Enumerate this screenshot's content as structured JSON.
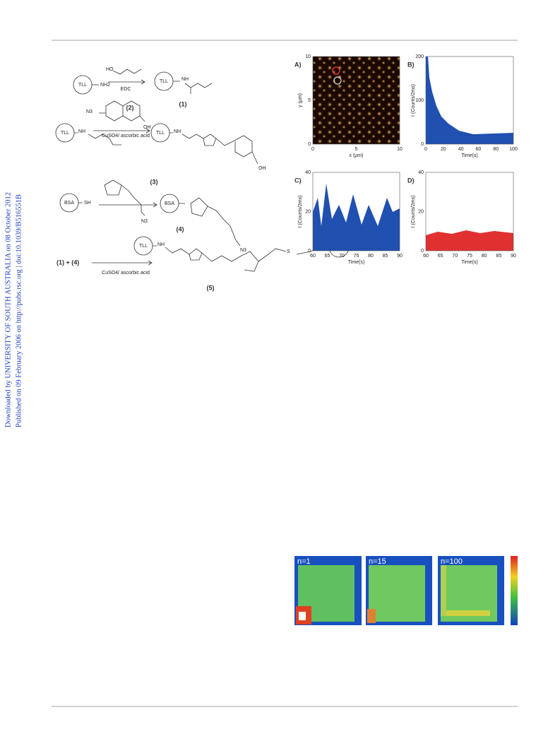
{
  "sidebar": {
    "downloaded": "Downloaded by UNIVERSITY OF SOUTH AUSTRALIA on 08 October 2012",
    "published": "Published on 09 February 2006 on http://pubs.rsc.org | doi:10.1039/B516551B"
  },
  "scheme": {
    "tll": "TLL",
    "nh2": "NH2",
    "nh": "NH",
    "ho": "HO",
    "edc": "EDC",
    "c1": "(1)",
    "c2": "(2)",
    "n3": "N3",
    "oh": "OH",
    "cuso4": "CuSO4/ ascorbic acid",
    "bsa": "BSA",
    "sh": "SH",
    "s": "S",
    "c3": "(3)",
    "c4": "(4)",
    "c5": "(5)",
    "lhs": "(1) +  (4)"
  },
  "figure": {
    "panels": [
      {
        "label": "A)",
        "xlabel": "x (µm)",
        "ylabel": "y (µm)",
        "xticks": [
          "0",
          "5",
          "10"
        ],
        "yticks": [
          "0",
          "5",
          "10"
        ]
      },
      {
        "label": "B)",
        "xlabel": "Time(s)",
        "ylabel": "I (Counts/2ms)",
        "xticks": [
          "0",
          "20",
          "40",
          "60",
          "80",
          "100"
        ],
        "yticks": [
          "0",
          "100",
          "200"
        ]
      },
      {
        "label": "C)",
        "xlabel": "Time(s)",
        "ylabel": "I (Counts/2ms)",
        "xticks": [
          "60",
          "65",
          "70",
          "75",
          "80",
          "85",
          "90"
        ],
        "yticks": [
          "0",
          "20",
          "40"
        ]
      },
      {
        "label": "D)",
        "xlabel": "Time(s)",
        "ylabel": "I (Counts/2ms)",
        "xticks": [
          "60",
          "65",
          "70",
          "75",
          "80",
          "85",
          "90"
        ],
        "yticks": [
          "0",
          "20",
          "40"
        ]
      }
    ]
  },
  "heatmaps": [
    "n=1",
    "n=15",
    "n=100"
  ]
}
